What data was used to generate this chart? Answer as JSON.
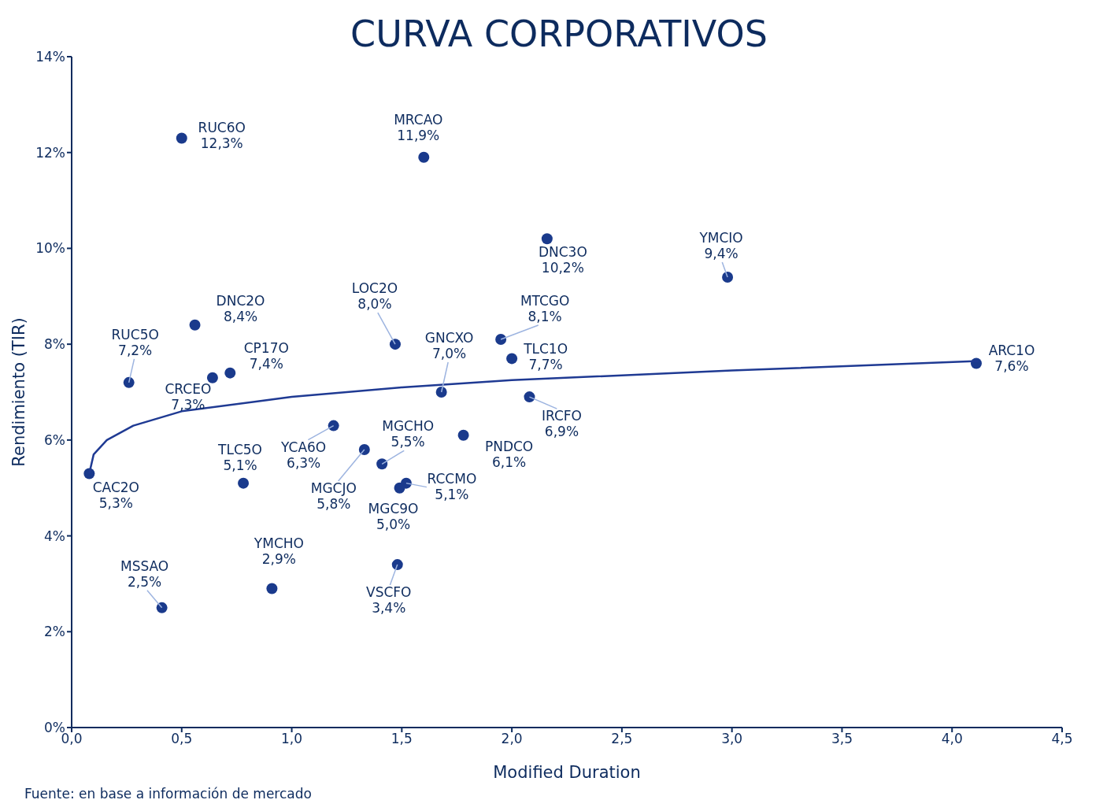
{
  "chart_data": {
    "type": "scatter",
    "title": "CURVA CORPORATIVOS",
    "xlabel": "Modified Duration",
    "ylabel": "Rendimiento (TIR)",
    "annotations": [
      "Fuente: en base a información de mercado"
    ],
    "xlim": [
      0,
      4.5
    ],
    "ylim": [
      0,
      14
    ],
    "xticks": [
      {
        "value": 0,
        "label": "0,0"
      },
      {
        "value": 0.5,
        "label": "0,5"
      },
      {
        "value": 1,
        "label": "1,0"
      },
      {
        "value": 1.5,
        "label": "1,5"
      },
      {
        "value": 2,
        "label": "2,0"
      },
      {
        "value": 2.5,
        "label": "2,5"
      },
      {
        "value": 3,
        "label": "3,0"
      },
      {
        "value": 3.5,
        "label": "3,5"
      },
      {
        "value": 4,
        "label": "4,0"
      },
      {
        "value": 4.5,
        "label": "4,5"
      }
    ],
    "yticks": [
      {
        "value": 0,
        "label": "0%"
      },
      {
        "value": 2,
        "label": "2%"
      },
      {
        "value": 4,
        "label": "4%"
      },
      {
        "value": 6,
        "label": "6%"
      },
      {
        "value": 8,
        "label": "8%"
      },
      {
        "value": 10,
        "label": "10%"
      },
      {
        "value": 12,
        "label": "12%"
      },
      {
        "value": 14,
        "label": "14%"
      }
    ],
    "series": [
      {
        "marker": "circle",
        "color": "#1a3a8c",
        "x": [
          0.5,
          1.6,
          2.16,
          2.98,
          0.56,
          1.47,
          1.95,
          2.0,
          4.11,
          0.26,
          0.72,
          0.64,
          1.68,
          2.08,
          1.19,
          1.78,
          1.33,
          1.41,
          0.08,
          1.52,
          0.78,
          1.49,
          1.48,
          0.91,
          0.41
        ],
        "values": [
          12.3,
          11.9,
          10.2,
          9.4,
          8.4,
          8.0,
          8.1,
          7.7,
          7.6,
          7.2,
          7.4,
          7.3,
          7.0,
          6.9,
          6.3,
          6.1,
          5.8,
          5.5,
          5.3,
          5.1,
          5.1,
          5.0,
          3.4,
          2.9,
          2.5
        ],
        "value_labels": [
          "RUC6O 12,3%",
          "MRCAO 11,9%",
          "DNC3O 10,2%",
          "YMCIO 9,4%",
          "DNC2O 8,4%",
          "LOC2O 8,0%",
          "MTCGO 8,1%",
          "TLC1O 7,7%",
          "ARC1O 7,6%",
          "RUC5O 7,2%",
          "CP17O 7,4%",
          "CRCEO 7,3%",
          "GNCXO 7,0%",
          "IRCFO 6,9%",
          "YCA6O 6,3%",
          "PNDCO 6,1%",
          "MGCJO 5,8%",
          "MGCHO 5,5%",
          "CAC2O 5,3%",
          "RCCMO 5,1%",
          "TLC5O 5,1%",
          "MGC9O 5,0%",
          "VSCFO 3,4%",
          "YMCHO 2,9%",
          "MSSAO 2,5%"
        ]
      },
      {
        "type": "line",
        "color": "#1f3a93",
        "x": [
          0.08,
          0.1,
          0.16,
          0.28,
          0.5,
          1.0,
          1.5,
          2.0,
          3.0,
          4.12
        ],
        "values": [
          5.3,
          5.7,
          6.0,
          6.3,
          6.6,
          6.9,
          7.1,
          7.25,
          7.45,
          7.65
        ]
      }
    ]
  }
}
